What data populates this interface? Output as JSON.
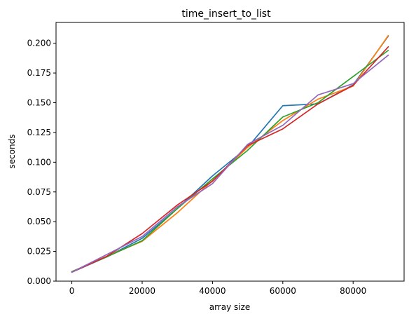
{
  "chart_data": {
    "type": "line",
    "title": "time_insert_to_list",
    "xlabel": "array size",
    "ylabel": "seconds",
    "xlim": [
      -4500,
      94500
    ],
    "ylim": [
      0.0,
      0.2175
    ],
    "xticks": [
      0,
      20000,
      40000,
      60000,
      80000
    ],
    "xtick_labels": [
      "0",
      "20000",
      "40000",
      "60000",
      "80000"
    ],
    "yticks": [
      0.0,
      0.025,
      0.05,
      0.075,
      0.1,
      0.125,
      0.15,
      0.175,
      0.2
    ],
    "ytick_labels": [
      "0.000",
      "0.025",
      "0.050",
      "0.075",
      "0.100",
      "0.125",
      "0.150",
      "0.175",
      "0.200"
    ],
    "grid": false,
    "x": [
      0,
      10000,
      20000,
      30000,
      40000,
      50000,
      60000,
      70000,
      80000,
      90000
    ],
    "series": [
      {
        "color": "#1f77b4",
        "values": [
          0.0075,
          0.0205,
          0.036,
          0.061,
          0.0885,
          0.1125,
          0.1475,
          0.149,
          0.165,
          0.206
        ]
      },
      {
        "color": "#ff7f0e",
        "values": [
          0.008,
          0.021,
          0.0335,
          0.0575,
          0.0845,
          0.1125,
          0.135,
          0.153,
          0.164,
          0.2065
        ]
      },
      {
        "color": "#2ca02c",
        "values": [
          0.008,
          0.0205,
          0.034,
          0.061,
          0.086,
          0.11,
          0.138,
          0.15,
          0.172,
          0.194
        ]
      },
      {
        "color": "#d62728",
        "values": [
          0.0075,
          0.021,
          0.04,
          0.064,
          0.084,
          0.114,
          0.128,
          0.149,
          0.1645,
          0.197
        ]
      },
      {
        "color": "#9467bd",
        "values": [
          0.0075,
          0.0225,
          0.0375,
          0.0625,
          0.082,
          0.115,
          0.131,
          0.1565,
          0.166,
          0.19
        ]
      }
    ]
  }
}
